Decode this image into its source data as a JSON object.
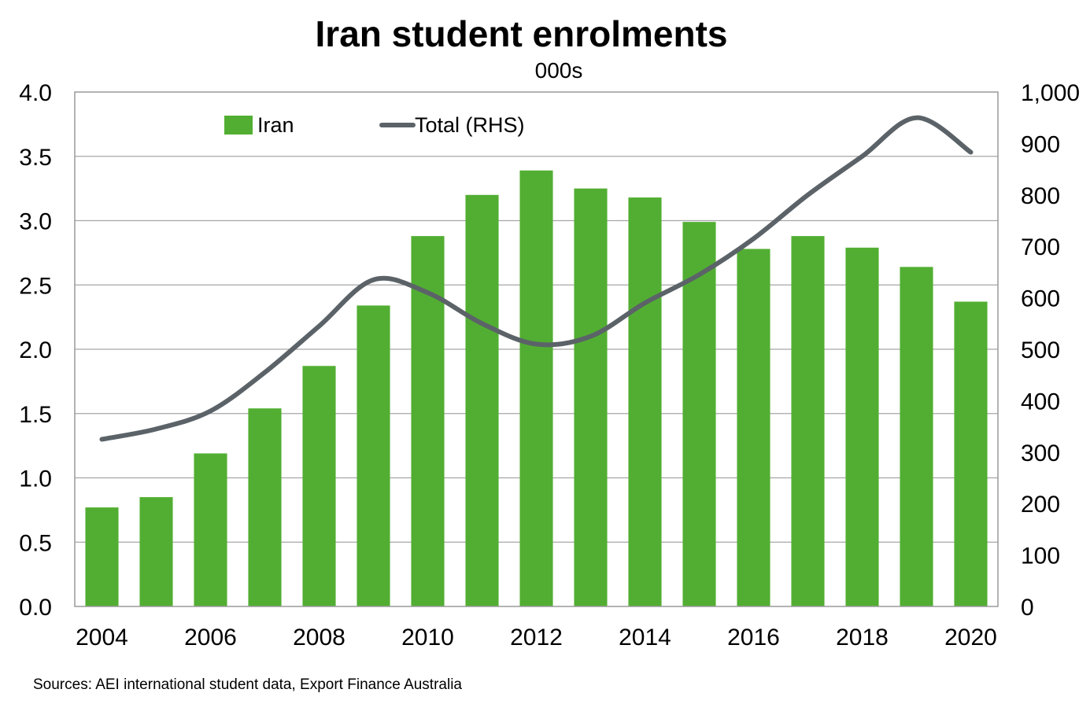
{
  "chart_data": {
    "type": "bar",
    "title": "Iran student enrolments",
    "subtitle": "000s",
    "categories": [
      2004,
      2005,
      2006,
      2007,
      2008,
      2009,
      2010,
      2011,
      2012,
      2013,
      2014,
      2015,
      2016,
      2017,
      2018,
      2019,
      2020
    ],
    "x_tick_labels": [
      "2004",
      "2006",
      "2008",
      "2010",
      "2012",
      "2014",
      "2016",
      "2018",
      "2020"
    ],
    "series": [
      {
        "name": "Iran",
        "type": "bar",
        "axis": "left",
        "color": "#52ae32",
        "values": [
          0.77,
          0.85,
          1.19,
          1.54,
          1.87,
          2.34,
          2.88,
          3.2,
          3.39,
          3.25,
          3.18,
          2.99,
          2.78,
          2.88,
          2.79,
          2.64,
          2.37
        ]
      },
      {
        "name": "Total (RHS)",
        "type": "line",
        "axis": "right",
        "color": "#5b6368",
        "values": [
          325,
          345,
          380,
          455,
          545,
          635,
          610,
          550,
          510,
          525,
          590,
          645,
          715,
          800,
          875,
          950,
          883
        ]
      }
    ],
    "y_left": {
      "min": 0,
      "max": 4,
      "ticks": [
        "0.0",
        "0.5",
        "1.0",
        "1.5",
        "2.0",
        "2.5",
        "3.0",
        "3.5",
        "4.0"
      ]
    },
    "y_right": {
      "min": 0,
      "max": 1000,
      "ticks": [
        "0",
        "100",
        "200",
        "300",
        "400",
        "500",
        "600",
        "700",
        "800",
        "900",
        "1,000"
      ]
    },
    "grid": true,
    "legend": "top-left",
    "source": "Sources: AEI international student data, Export Finance Australia"
  }
}
